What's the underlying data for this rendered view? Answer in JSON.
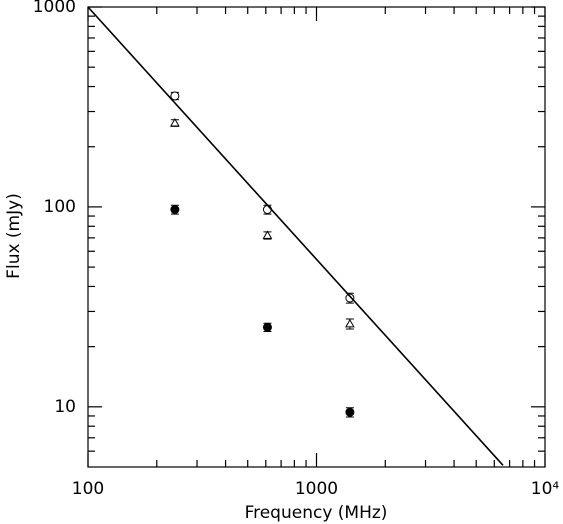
{
  "chart_data": {
    "type": "scatter",
    "xlabel": "Frequency (MHz)",
    "ylabel": "Flux (mJy)",
    "log_x": true,
    "log_y": true,
    "xlim": [
      100,
      10000
    ],
    "ylim": [
      5,
      1000
    ],
    "xticks": [
      100,
      1000,
      {
        "value": 10000,
        "label": "10⁴"
      }
    ],
    "yticks": [
      10,
      100,
      1000
    ],
    "xminorticks": [
      200,
      300,
      400,
      500,
      600,
      700,
      800,
      900,
      2000,
      3000,
      4000,
      5000,
      6000,
      7000,
      8000,
      9000
    ],
    "yminorticks": [
      6,
      7,
      8,
      9,
      20,
      30,
      40,
      50,
      60,
      70,
      80,
      90,
      200,
      300,
      400,
      500,
      600,
      700,
      800,
      900
    ],
    "series": [
      {
        "marker": "open-circle",
        "color": "#000000",
        "x": [
          240,
          610,
          1400
        ],
        "values": [
          359,
          97,
          35
        ],
        "errors": [
          15,
          5,
          2
        ]
      },
      {
        "marker": "open-triangle",
        "color": "#000000",
        "x": [
          240,
          610,
          1400
        ],
        "values": [
          263,
          72,
          26
        ],
        "errors": [
          10,
          3,
          1.5
        ]
      },
      {
        "marker": "filled-circle",
        "color": "#000000",
        "x": [
          240,
          610,
          1400
        ],
        "values": [
          97,
          25,
          9.4
        ],
        "errors": [
          5,
          1.2,
          0.5
        ]
      },
      {
        "marker": "line",
        "color": "#000000",
        "x": [
          100,
          6550
        ],
        "values": [
          1000,
          5.1
        ]
      }
    ]
  }
}
